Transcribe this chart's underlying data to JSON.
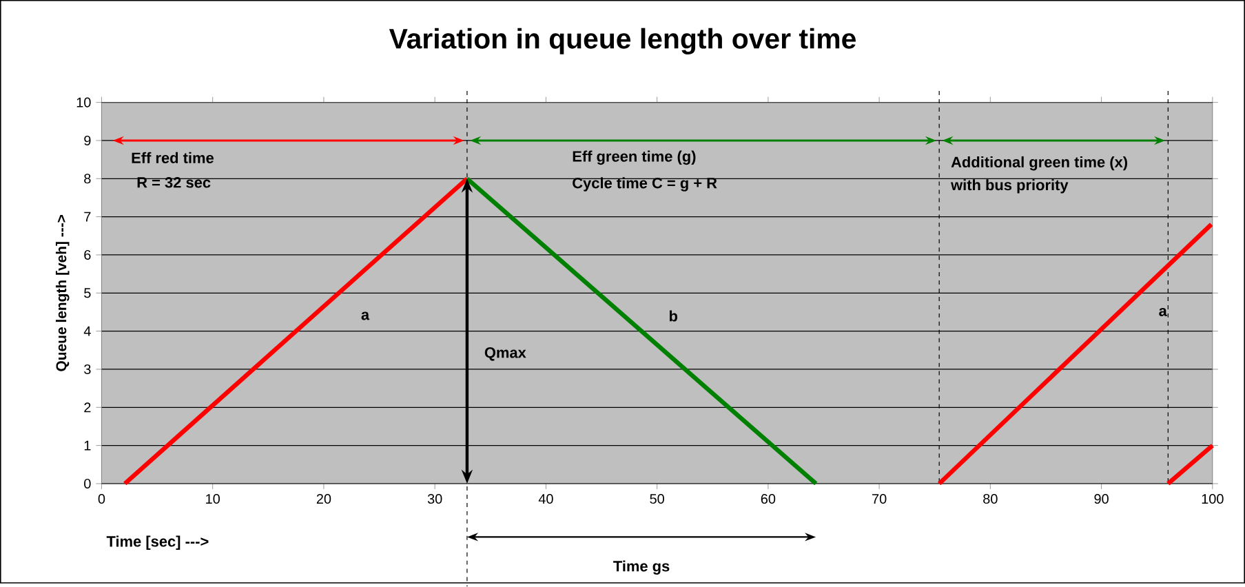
{
  "chart_data": {
    "type": "line",
    "title": "Variation in queue length over time",
    "xlabel": "Time [sec] --->",
    "ylabel": "Queue length [veh] --->",
    "xlim": [
      0,
      100
    ],
    "ylim": [
      0,
      10
    ],
    "xticks": [
      0,
      10,
      20,
      30,
      40,
      50,
      60,
      70,
      80,
      90,
      100
    ],
    "yticks": [
      0,
      1,
      2,
      3,
      4,
      5,
      6,
      7,
      8,
      9,
      10
    ],
    "grid": "y",
    "marker": "none",
    "line_style": "solid",
    "series": [
      {
        "color": "#ff0000",
        "x": [
          2.1,
          32.9
        ],
        "values": [
          0,
          8
        ]
      },
      {
        "color": "#008000",
        "x": [
          32.9,
          64.3
        ],
        "values": [
          8,
          0
        ]
      },
      {
        "color": "#ff0000",
        "x": [
          75.4,
          99.9
        ],
        "values": [
          0,
          6.8
        ]
      },
      {
        "color": "#ff0000",
        "x": [
          96,
          100
        ],
        "values": [
          0,
          1
        ]
      }
    ],
    "ref_lines": [
      {
        "axis": "x",
        "value": 32.9,
        "label": null,
        "color": "#000000",
        "line_style": "dashed"
      },
      {
        "axis": "x",
        "value": 75.4,
        "label": null,
        "color": "#000000",
        "line_style": "dashed"
      },
      {
        "axis": "x",
        "value": 96,
        "label": null,
        "color": "#000000",
        "line_style": "dashed"
      }
    ],
    "annotations": [
      "Eff red time",
      "R = 32 sec",
      "Eff green time (g)",
      "Cycle time C = g + R",
      "Additional green time (x)",
      "with bus priority",
      "a",
      "b",
      "a",
      "Qmax",
      "Time gs"
    ]
  }
}
